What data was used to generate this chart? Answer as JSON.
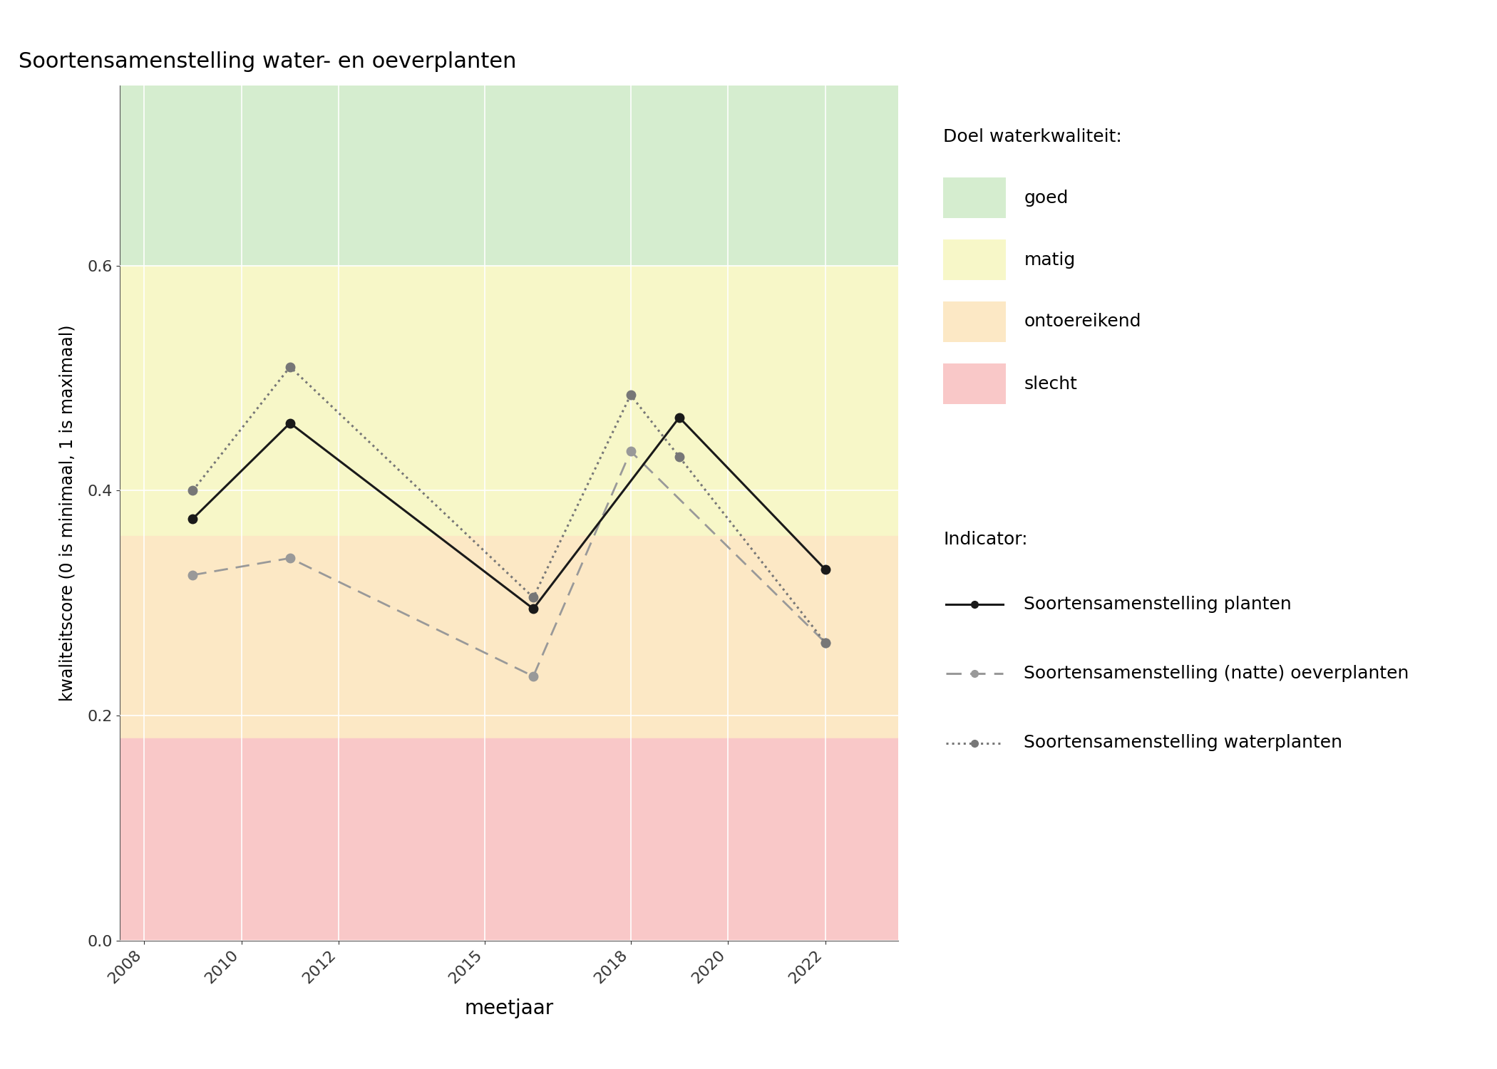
{
  "title": "Soortensamenstelling water- en oeverplanten",
  "xlabel": "meetjaar",
  "ylabel": "kwaliteitscore (0 is minimaal, 1 is maximaal)",
  "xlim": [
    2007.5,
    2023.5
  ],
  "ylim": [
    0.0,
    0.76
  ],
  "yticks": [
    0.0,
    0.2,
    0.4,
    0.6
  ],
  "xticks": [
    2008,
    2010,
    2012,
    2015,
    2018,
    2020,
    2022
  ],
  "xtick_labels": [
    "2008",
    "2010",
    "2012",
    "2015",
    "2018",
    "2020",
    "2022"
  ],
  "bg_colors": {
    "goed": "#d5edcf",
    "matig": "#f7f7c8",
    "ontoereikend": "#fce8c5",
    "slecht": "#f9c8c8"
  },
  "bg_ranges": {
    "goed": [
      0.6,
      0.76
    ],
    "matig": [
      0.36,
      0.6
    ],
    "ontoereikend": [
      0.18,
      0.36
    ],
    "slecht": [
      0.0,
      0.18
    ]
  },
  "series_planten": {
    "x": [
      2009,
      2011,
      2016,
      2019,
      2022
    ],
    "y": [
      0.375,
      0.46,
      0.295,
      0.465,
      0.33
    ],
    "color": "#1a1a1a",
    "linestyle": "solid",
    "marker": "o",
    "markersize": 9,
    "linewidth": 2.2,
    "label": "Soortensamenstelling planten"
  },
  "series_oeverplanten": {
    "x": [
      2009,
      2011,
      2016,
      2018,
      2022
    ],
    "y": [
      0.325,
      0.34,
      0.235,
      0.435,
      0.265
    ],
    "color": "#999999",
    "linestyle": "dashed",
    "marker": "o",
    "markersize": 9,
    "linewidth": 2.0,
    "label": "Soortensamenstelling (natte) oeverplanten"
  },
  "series_waterplanten": {
    "x": [
      2009,
      2011,
      2016,
      2018,
      2019,
      2022
    ],
    "y": [
      0.4,
      0.51,
      0.305,
      0.485,
      0.43,
      0.265
    ],
    "color": "#777777",
    "linestyle": "dotted",
    "marker": "o",
    "markersize": 9,
    "linewidth": 2.2,
    "label": "Soortensamenstelling waterplanten"
  },
  "legend_doel_title": "Doel waterkwaliteit:",
  "legend_indicator_title": "Indicator:",
  "doel_labels": [
    "goed",
    "matig",
    "ontoereikend",
    "slecht"
  ],
  "fig_width": 21.0,
  "fig_height": 15.0,
  "background_color": "#ffffff"
}
